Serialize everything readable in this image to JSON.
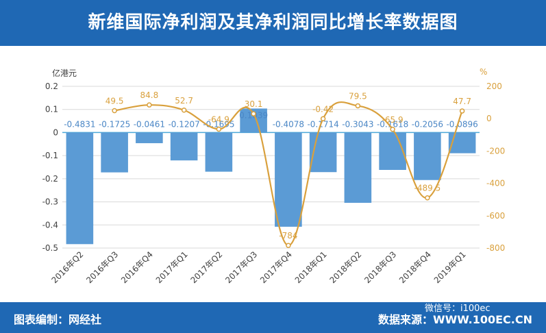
{
  "header": {
    "title": "新维国际净利润及其净利润同比增长率数据图"
  },
  "footer": {
    "left_label": "图表编制：网经社",
    "right_label": "数据来源：WWW.100EC.CN",
    "wechat_label": "微信号：i100ec"
  },
  "colors": {
    "bar": "#5b9bd5",
    "line": "#d9a03c",
    "header": "#1f68b4"
  },
  "chart_data": {
    "type": "bar",
    "categories": [
      "2016年Q2",
      "2016年Q3",
      "2016年Q4",
      "2017年Q1",
      "2017年Q2",
      "2017年Q3",
      "2017年Q4",
      "2018年Q1",
      "2018年Q2",
      "2018年Q3",
      "2018年Q4",
      "2019年Q1"
    ],
    "series": [
      {
        "type": "bar",
        "axis": "left",
        "values": [
          -0.4831,
          -0.1725,
          -0.0461,
          -0.1207,
          -0.1695,
          0.1039,
          -0.4078,
          -0.1714,
          -0.3043,
          -0.1618,
          -0.2056,
          -0.0896
        ],
        "labels": [
          "-0.4831",
          "-0.1725",
          "-0.0461",
          "-0.1207",
          "-0.1695",
          "0.1039",
          "-0.4078",
          "-0.1714",
          "-0.3043",
          "-0.1618",
          "-0.2056",
          "-0.0896"
        ]
      },
      {
        "type": "line",
        "axis": "right",
        "smooth": true,
        "values": [
          null,
          49.5,
          84.8,
          52.7,
          -64.9,
          30.1,
          -784,
          -0.42,
          79.5,
          -65.9,
          -489.5,
          47.7
        ],
        "labels": [
          "",
          "49.5",
          "84.8",
          "52.7",
          "-64.9",
          "30.1",
          "-784",
          "-0.42",
          "79.5",
          "-65.9",
          "-489.5",
          "47.7"
        ]
      }
    ],
    "y_left": {
      "unit": "亿港元",
      "ylim": [
        -0.5,
        0.2
      ],
      "ticks": [
        0.2,
        0.1,
        0,
        -0.1,
        -0.2,
        -0.3,
        -0.4,
        -0.5
      ],
      "tick_labels": [
        "0.2",
        "0.1",
        "0",
        "-0.1",
        "-0.2",
        "-0.3",
        "-0.4",
        "-0.5"
      ]
    },
    "y_right": {
      "unit": "%",
      "ylim": [
        -800,
        200
      ],
      "ticks": [
        200,
        0,
        -200,
        -400,
        -600,
        -800
      ],
      "tick_labels": [
        "200",
        "0",
        "-200",
        "-400",
        "-600",
        "-800"
      ]
    },
    "grid": true,
    "legend": "none"
  }
}
